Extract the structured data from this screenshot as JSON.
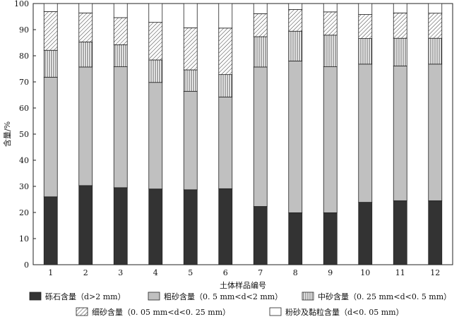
{
  "chart_data": {
    "type": "bar",
    "stacked": true,
    "categories": [
      "1",
      "2",
      "3",
      "4",
      "5",
      "6",
      "7",
      "8",
      "9",
      "10",
      "11",
      "12"
    ],
    "xlabel": "土体样品编号",
    "ylabel": "含量/%",
    "ylim": [
      0,
      100
    ],
    "yticks": [
      0,
      10,
      20,
      30,
      40,
      50,
      60,
      70,
      80,
      90,
      100
    ],
    "grid": false,
    "legend_position": "bottom",
    "series": [
      {
        "name": "砾石含量（d>2 mm）",
        "pattern": "solid-dark",
        "color": "#333333",
        "values": [
          26.0,
          30.3,
          29.5,
          29.0,
          28.7,
          29.1,
          22.3,
          19.9,
          19.9,
          23.9,
          24.5,
          24.5
        ]
      },
      {
        "name": "粗砂含量（0. 5 mm<d<2 mm）",
        "pattern": "solid-gray",
        "color": "#c0c0c0",
        "values": [
          45.8,
          45.4,
          46.3,
          40.8,
          37.7,
          35.1,
          53.4,
          58.1,
          55.9,
          52.9,
          51.6,
          52.3
        ]
      },
      {
        "name": "中砂含量（0. 25 mm<d<0. 5 mm）",
        "pattern": "vertical-lines",
        "color": "#ffffff",
        "values": [
          10.3,
          9.6,
          8.4,
          8.6,
          8.2,
          8.6,
          11.6,
          11.4,
          12.1,
          9.8,
          10.6,
          9.9
        ]
      },
      {
        "name": "细砂含量（0. 05 mm<d<0. 25 mm）",
        "pattern": "diagonal-lines",
        "color": "#ffffff",
        "values": [
          14.8,
          11.1,
          10.4,
          14.4,
          16.1,
          17.8,
          8.8,
          8.3,
          8.9,
          9.2,
          9.7,
          9.6
        ]
      },
      {
        "name": "粉砂及黏粒含量（d<0. 05 mm）",
        "pattern": "white",
        "color": "#ffffff",
        "values": [
          3.1,
          3.6,
          5.4,
          7.2,
          9.3,
          9.4,
          3.9,
          2.3,
          3.2,
          4.2,
          3.6,
          3.7
        ]
      }
    ]
  }
}
